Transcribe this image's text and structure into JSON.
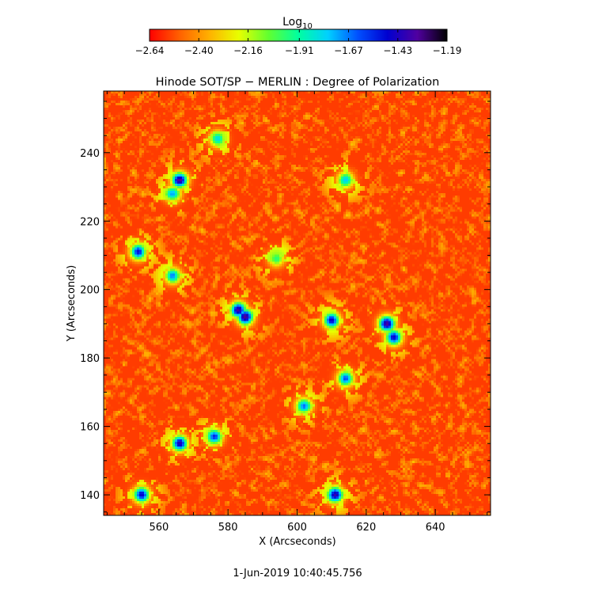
{
  "chart_data": {
    "type": "heatmap",
    "title": "Hinode SOT/SP − MERLIN : Degree of Polarization",
    "xlabel": "X (Arcseconds)",
    "ylabel": "Y (Arcseconds)",
    "xlim": [
      544,
      656
    ],
    "ylim": [
      134,
      258
    ],
    "x_ticks": [
      560,
      580,
      600,
      620,
      640
    ],
    "x_tick_labels": [
      "560",
      "580",
      "600",
      "620",
      "640"
    ],
    "y_ticks": [
      140,
      160,
      180,
      200,
      220,
      240
    ],
    "y_tick_labels": [
      "140",
      "160",
      "180",
      "200",
      "220",
      "240"
    ],
    "colorbar": {
      "label_base": "Log",
      "label_sub": "10",
      "range": [
        -2.64,
        -1.19
      ],
      "ticks": [
        -2.64,
        -2.4,
        -2.16,
        -1.91,
        -1.67,
        -1.43,
        -1.19
      ],
      "tick_labels": [
        "−2.64",
        "−2.40",
        "−2.16",
        "−1.91",
        "−1.67",
        "−1.43",
        "−1.19"
      ],
      "colormap": [
        "#ff0000",
        "#ff6000",
        "#ffb000",
        "#e8ff00",
        "#60ff30",
        "#00ffa0",
        "#00d0ff",
        "#0050ff",
        "#0000d0",
        "#5000a0",
        "#000000"
      ]
    },
    "field_features": [
      {
        "x": 583,
        "y": 194,
        "peak": -1.35
      },
      {
        "x": 585,
        "y": 192,
        "peak": -1.3
      },
      {
        "x": 626,
        "y": 190,
        "peak": -1.3
      },
      {
        "x": 628,
        "y": 186,
        "peak": -1.45
      },
      {
        "x": 611,
        "y": 140,
        "peak": -1.35
      },
      {
        "x": 566,
        "y": 232,
        "peak": -1.35
      },
      {
        "x": 564,
        "y": 228,
        "peak": -1.7
      },
      {
        "x": 610,
        "y": 191,
        "peak": -1.45
      },
      {
        "x": 566,
        "y": 155,
        "peak": -1.4
      },
      {
        "x": 576,
        "y": 157,
        "peak": -1.55
      },
      {
        "x": 555,
        "y": 140,
        "peak": -1.45
      },
      {
        "x": 554,
        "y": 211,
        "peak": -1.5
      },
      {
        "x": 594,
        "y": 209,
        "peak": -1.95
      },
      {
        "x": 602,
        "y": 166,
        "peak": -1.65
      },
      {
        "x": 564,
        "y": 204,
        "peak": -1.7
      },
      {
        "x": 614,
        "y": 232,
        "peak": -1.75
      },
      {
        "x": 577,
        "y": 244,
        "peak": -1.8
      },
      {
        "x": 614,
        "y": 174,
        "peak": -1.6
      }
    ],
    "background_level": -2.55
  },
  "footer": {
    "timestamp": "1-Jun-2019 10:40:45.756"
  },
  "styles": {
    "axis_color": "#000000",
    "background": "#ffffff"
  }
}
